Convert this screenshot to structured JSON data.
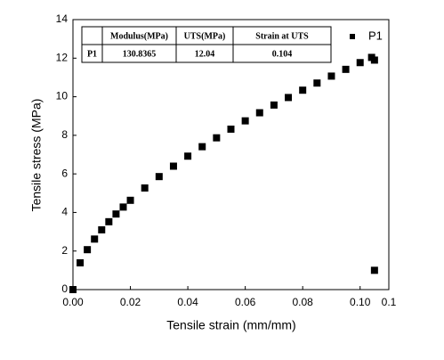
{
  "chart_data": {
    "type": "scatter",
    "xlabel": "Tensile strain (mm/mm)",
    "ylabel": "Tensile stress (MPa)",
    "xlim": [
      0,
      0.11
    ],
    "xticks": [
      {
        "value": 0,
        "label": "0.00"
      },
      {
        "value": 0.02,
        "label": "0.02"
      },
      {
        "value": 0.04,
        "label": "0.04"
      },
      {
        "value": 0.06,
        "label": "0.06"
      },
      {
        "value": 0.08,
        "label": "0.08"
      },
      {
        "value": 0.1,
        "label": "0.10"
      },
      {
        "value": 0.11,
        "label": "0.1"
      }
    ],
    "ylim": [
      0,
      14
    ],
    "yticks": [
      0,
      2,
      4,
      6,
      8,
      10,
      12,
      14
    ],
    "legend": "upper right",
    "series": [
      {
        "name": "P1",
        "color": "#000000",
        "x": [
          0,
          0.0025,
          0.005,
          0.0075,
          0.01,
          0.0125,
          0.015,
          0.0175,
          0.02,
          0.025,
          0.03,
          0.035,
          0.04,
          0.045,
          0.05,
          0.055,
          0.06,
          0.065,
          0.07,
          0.075,
          0.08,
          0.085,
          0.09,
          0.095,
          0.1,
          0.104,
          0.105,
          0.105
        ],
        "values": [
          0,
          1.39,
          2.07,
          2.62,
          3.1,
          3.52,
          3.92,
          4.28,
          4.63,
          5.27,
          5.86,
          6.4,
          6.92,
          7.41,
          7.87,
          8.32,
          8.75,
          9.17,
          9.57,
          9.96,
          10.34,
          10.71,
          11.07,
          11.42,
          11.77,
          12.04,
          11.9,
          1.0
        ]
      }
    ],
    "table": {
      "header": [
        "Modulus(MPa)",
        "UTS(MPa)",
        "Strain at UTS"
      ],
      "rows": [
        [
          "P1",
          "130.8365",
          "12.04",
          "0.104"
        ]
      ]
    }
  }
}
